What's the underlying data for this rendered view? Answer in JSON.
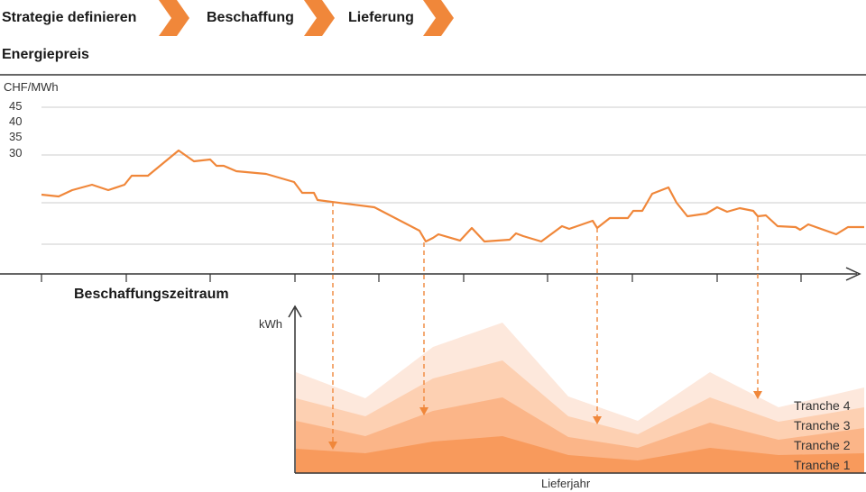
{
  "process_steps": [
    {
      "label": "Strategie definieren"
    },
    {
      "label": "Beschaffung"
    },
    {
      "label": "Lieferung"
    }
  ],
  "price_panel": {
    "title": "Energiepreis",
    "unit": "CHF/MWh",
    "ticks": [
      "45",
      "40",
      "35",
      "30"
    ]
  },
  "procurement_panel": {
    "title": "Beschaffungszeitraum",
    "y_unit": "kWh",
    "x_label": "Lieferjahr",
    "tranches": [
      "Tranche 4",
      "Tranche 3",
      "Tranche 2",
      "Tranche 1"
    ]
  },
  "colors": {
    "accent": "#f0873a",
    "tranche_1": "#f89a5c",
    "tranche_2": "#fbb588",
    "tranche_3": "#fdd0b2",
    "tranche_4": "#fde8dc",
    "axis": "#333333",
    "grid": "#c8c8c8"
  }
}
